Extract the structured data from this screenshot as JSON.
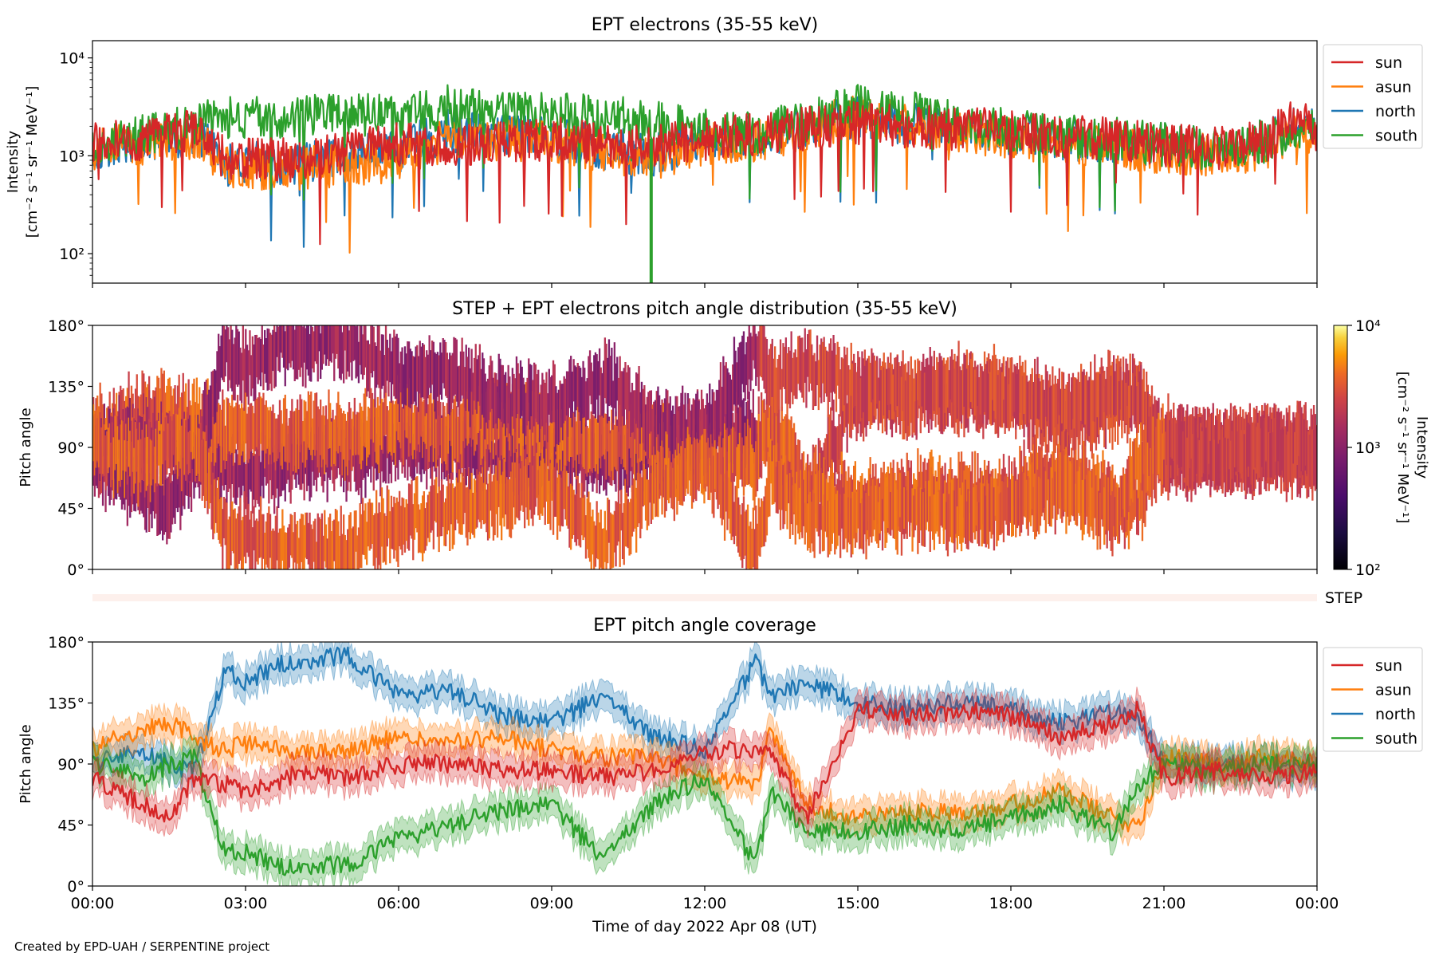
{
  "figure": {
    "footer": "Created by EPD-UAH / SERPENTINE project",
    "xlabel": "Time of day 2022 Apr 08 (UT)",
    "xticks": [
      "00:00",
      "03:00",
      "06:00",
      "09:00",
      "12:00",
      "15:00",
      "18:00",
      "21:00",
      "00:00"
    ]
  },
  "colors": {
    "sun": "#d62728",
    "asun": "#ff7f0e",
    "north": "#1f77b4",
    "south": "#2ca02c"
  },
  "chart_data": [
    {
      "type": "line",
      "title": "EPT electrons (35-55 keV)",
      "ylabel": "Intensity",
      "ylabel2": "[cm⁻² s⁻¹ sr⁻¹ MeV⁻¹]",
      "yscale": "log",
      "ylim": [
        50,
        15000
      ],
      "yticks": [
        {
          "value": 100,
          "label": "10²"
        },
        {
          "value": 1000,
          "label": "10³"
        },
        {
          "value": 10000,
          "label": "10⁴"
        }
      ],
      "xlim_hours": [
        0,
        24
      ],
      "legend": "outside-right",
      "series": [
        {
          "name": "sun",
          "color": "#d62728",
          "times": [
            0,
            1,
            2,
            2.6,
            3,
            4,
            5,
            6,
            7,
            8,
            9,
            10,
            11,
            12,
            13,
            14,
            15,
            16,
            17,
            18,
            19,
            20,
            21,
            22,
            23,
            23.7,
            24
          ],
          "values": [
            1300,
            1500,
            1800,
            900,
            950,
            900,
            1100,
            1300,
            1300,
            1400,
            1500,
            1300,
            1200,
            1500,
            1700,
            1900,
            2200,
            2000,
            1900,
            1800,
            1600,
            1500,
            1300,
            1200,
            1400,
            2600,
            1800
          ]
        },
        {
          "name": "asun",
          "color": "#ff7f0e",
          "times": [
            0,
            1,
            2,
            2.6,
            3,
            4,
            5,
            6,
            7,
            8,
            9,
            10,
            11,
            12,
            13,
            14,
            15,
            16,
            17,
            18,
            19,
            20,
            21,
            22,
            23,
            23.7,
            24
          ],
          "values": [
            1200,
            1300,
            1500,
            750,
            700,
            750,
            800,
            900,
            1500,
            1500,
            1400,
            1100,
            900,
            1300,
            1400,
            1900,
            2500,
            2200,
            1800,
            1500,
            1300,
            1200,
            1100,
            1000,
            1200,
            1800,
            1500
          ]
        },
        {
          "name": "north",
          "color": "#1f77b4",
          "times": [
            0,
            1,
            2,
            2.6,
            3,
            4,
            5,
            6,
            7,
            8,
            9,
            10,
            11,
            12,
            13,
            14,
            15,
            16,
            17,
            18,
            19,
            20,
            21,
            22,
            23,
            23.7,
            24
          ],
          "values": [
            1200,
            1400,
            1600,
            800,
            850,
            850,
            950,
            1100,
            1800,
            1700,
            1500,
            1200,
            1000,
            1400,
            1600,
            2000,
            2400,
            2100,
            1900,
            1700,
            1500,
            1400,
            1300,
            1200,
            1400,
            2200,
            1700
          ]
        },
        {
          "name": "south",
          "color": "#2ca02c",
          "times": [
            0,
            1,
            2,
            2.6,
            3,
            4,
            5,
            6,
            7,
            8,
            9,
            10,
            11,
            12,
            13,
            14,
            15,
            16,
            17,
            18,
            19,
            20,
            21,
            22,
            23,
            23.7,
            24
          ],
          "values": [
            1400,
            1600,
            2000,
            2500,
            2400,
            2600,
            2700,
            2400,
            3200,
            2900,
            2700,
            2500,
            2200,
            1800,
            1700,
            2200,
            3200,
            2800,
            2100,
            1800,
            1600,
            1500,
            1300,
            1200,
            1400,
            2000,
            1700
          ]
        }
      ]
    },
    {
      "type": "heatmap",
      "title": "STEP + EPT electrons pitch angle distribution (35-55 keV)",
      "ylabel": "Pitch angle",
      "ylim": [
        0,
        180
      ],
      "yticks": [
        "0°",
        "45°",
        "90°",
        "135°",
        "180°"
      ],
      "colorbar": {
        "label": "Intensity",
        "label2": "[cm⁻² s⁻¹ sr⁻¹ MeV⁻¹]",
        "scale": "log",
        "range": [
          100,
          10000
        ],
        "ticks": [
          {
            "value": 100,
            "label": "10²"
          },
          {
            "value": 1000,
            "label": "10³"
          },
          {
            "value": 10000,
            "label": "10⁴"
          }
        ],
        "colormap": "inferno"
      },
      "step_label": "STEP"
    },
    {
      "type": "line",
      "title": "EPT pitch angle coverage",
      "ylabel": "Pitch angle",
      "ylim": [
        0,
        180
      ],
      "yticks": [
        "0°",
        "45°",
        "90°",
        "135°",
        "180°"
      ],
      "band_halfwidth_deg": 11,
      "legend": "outside-right",
      "series": [
        {
          "name": "sun",
          "color": "#d62728",
          "times": [
            0,
            0.5,
            1,
            1.5,
            2,
            2.6,
            3,
            3.7,
            4,
            5,
            6,
            7,
            8,
            9,
            10,
            11,
            12,
            13,
            13.3,
            14,
            15,
            16,
            17,
            18,
            19,
            20,
            20.5,
            21,
            22,
            23,
            24
          ],
          "values": [
            80,
            70,
            60,
            50,
            80,
            75,
            70,
            75,
            85,
            80,
            90,
            90,
            85,
            85,
            80,
            85,
            100,
            100,
            95,
            50,
            130,
            125,
            130,
            125,
            110,
            120,
            130,
            80,
            85,
            80,
            85
          ]
        },
        {
          "name": "asun",
          "color": "#ff7f0e",
          "times": [
            0,
            0.5,
            1,
            1.5,
            2,
            2.6,
            3,
            3.7,
            4,
            5,
            6,
            7,
            8,
            9,
            10,
            11,
            12,
            13,
            13.3,
            14,
            15,
            16,
            17,
            18,
            19,
            20,
            20.5,
            21,
            22,
            23,
            24
          ],
          "values": [
            100,
            110,
            115,
            120,
            110,
            100,
            105,
            100,
            100,
            100,
            110,
            105,
            110,
            100,
            95,
            95,
            80,
            75,
            115,
            60,
            50,
            55,
            55,
            60,
            70,
            50,
            45,
            95,
            90,
            95,
            90
          ]
        },
        {
          "name": "north",
          "color": "#1f77b4",
          "times": [
            0,
            0.5,
            1,
            1.5,
            2,
            2.6,
            3,
            3.7,
            4,
            5,
            6,
            7,
            8,
            9,
            10,
            11,
            12,
            13,
            13.3,
            14,
            15,
            16,
            17,
            18,
            19,
            20,
            20.5,
            21,
            22,
            23,
            24
          ],
          "values": [
            90,
            95,
            100,
            90,
            85,
            160,
            150,
            165,
            165,
            170,
            140,
            145,
            125,
            120,
            140,
            110,
            100,
            165,
            140,
            150,
            135,
            130,
            135,
            130,
            120,
            130,
            125,
            90,
            90,
            90,
            85
          ]
        },
        {
          "name": "south",
          "color": "#2ca02c",
          "times": [
            0,
            0.5,
            1,
            1.5,
            2,
            2.6,
            3,
            3.7,
            4,
            5,
            6,
            7,
            8,
            9,
            10,
            11,
            12,
            13,
            13.3,
            14,
            15,
            16,
            17,
            18,
            19,
            20,
            20.5,
            21,
            22,
            23,
            24
          ],
          "values": [
            90,
            85,
            80,
            90,
            95,
            25,
            25,
            15,
            15,
            15,
            35,
            45,
            55,
            60,
            20,
            60,
            80,
            15,
            70,
            40,
            40,
            45,
            40,
            50,
            60,
            40,
            75,
            90,
            85,
            90,
            90
          ]
        }
      ]
    }
  ]
}
